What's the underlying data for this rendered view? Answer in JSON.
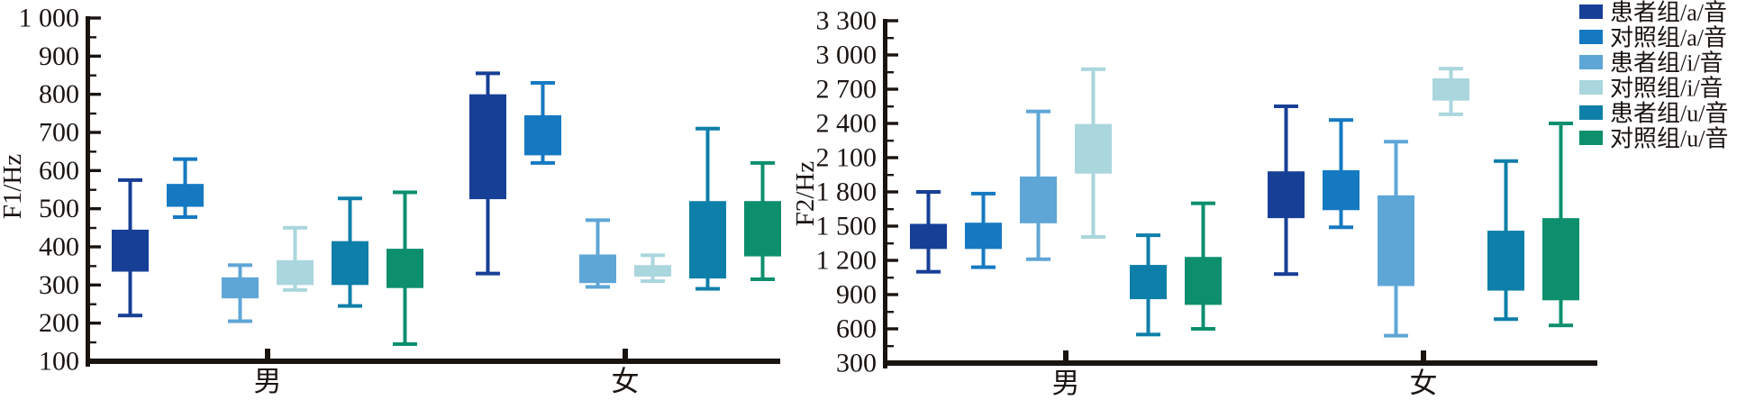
{
  "figure": {
    "background": "#ffffff"
  },
  "legend": {
    "items": [
      {
        "label": "患者组/a/音",
        "color": "#173f96"
      },
      {
        "label": "对照组/a/音",
        "color": "#1579c2"
      },
      {
        "label": "患者组/i/音",
        "color": "#5ea6d6"
      },
      {
        "label": "对照组/i/音",
        "color": "#aad6dd"
      },
      {
        "label": "患者组/u/音",
        "color": "#0e7fa8"
      },
      {
        "label": "对照组/u/音",
        "color": "#0d8f6e"
      }
    ]
  },
  "chart_data": [
    {
      "type": "boxplot",
      "ylabel": "F1/Hz",
      "ylim": [
        100,
        1000
      ],
      "ytick_major": 100,
      "ytick_minor": 50,
      "ytick_labels": [
        "1 000",
        "900",
        "800",
        "700",
        "600",
        "500",
        "400",
        "300",
        "200",
        "100"
      ],
      "categories": [
        "男",
        "女"
      ],
      "grid": false,
      "legend_position": "top-right",
      "series": [
        {
          "name": "患者组/a/音",
          "color": "#173f96",
          "boxes": [
            {
              "low": 220,
              "q1": 335,
              "q3": 445,
              "high": 575
            },
            {
              "low": 330,
              "q1": 525,
              "q3": 800,
              "high": 855
            }
          ]
        },
        {
          "name": "对照组/a/音",
          "color": "#1579c2",
          "boxes": [
            {
              "low": 478,
              "q1": 505,
              "q3": 565,
              "high": 630
            },
            {
              "low": 620,
              "q1": 640,
              "q3": 745,
              "high": 830
            }
          ]
        },
        {
          "name": "患者组/i/音",
          "color": "#5ea6d6",
          "boxes": [
            {
              "low": 205,
              "q1": 265,
              "q3": 320,
              "high": 352
            },
            {
              "low": 295,
              "q1": 305,
              "q3": 380,
              "high": 470
            }
          ]
        },
        {
          "name": "对照组/i/音",
          "color": "#aad6dd",
          "boxes": [
            {
              "low": 287,
              "q1": 300,
              "q3": 365,
              "high": 450
            },
            {
              "low": 310,
              "q1": 322,
              "q3": 352,
              "high": 378
            }
          ]
        },
        {
          "name": "患者组/u/音",
          "color": "#0e7fa8",
          "boxes": [
            {
              "low": 245,
              "q1": 300,
              "q3": 415,
              "high": 527
            },
            {
              "low": 290,
              "q1": 317,
              "q3": 520,
              "high": 710
            }
          ]
        },
        {
          "name": "对照组/u/音",
          "color": "#0d8f6e",
          "boxes": [
            {
              "low": 145,
              "q1": 292,
              "q3": 395,
              "high": 543
            },
            {
              "low": 315,
              "q1": 375,
              "q3": 520,
              "high": 620
            }
          ]
        }
      ]
    },
    {
      "type": "boxplot",
      "ylabel": "F2/Hz",
      "ylim": [
        300,
        3300
      ],
      "ytick_major": 300,
      "ytick_minor": 150,
      "ytick_labels": [
        "3 300",
        "3 000",
        "2 700",
        "2 400",
        "2 100",
        "1 800",
        "1 500",
        "1 200",
        "900",
        "600",
        "300"
      ],
      "categories": [
        "男",
        "女"
      ],
      "grid": false,
      "legend_position": "top-right",
      "series": [
        {
          "name": "患者组/a/音",
          "color": "#173f96",
          "boxes": [
            {
              "low": 1100,
              "q1": 1300,
              "q3": 1520,
              "high": 1800
            },
            {
              "low": 1080,
              "q1": 1570,
              "q3": 1980,
              "high": 2550
            }
          ]
        },
        {
          "name": "对照组/a/音",
          "color": "#1579c2",
          "boxes": [
            {
              "low": 1140,
              "q1": 1300,
              "q3": 1530,
              "high": 1785
            },
            {
              "low": 1490,
              "q1": 1640,
              "q3": 1990,
              "high": 2430
            }
          ]
        },
        {
          "name": "患者组/i/音",
          "color": "#5ea6d6",
          "boxes": [
            {
              "low": 1210,
              "q1": 1525,
              "q3": 1935,
              "high": 2505
            },
            {
              "low": 540,
              "q1": 975,
              "q3": 1770,
              "high": 2240
            }
          ]
        },
        {
          "name": "对照组/i/音",
          "color": "#aad6dd",
          "boxes": [
            {
              "low": 1405,
              "q1": 1960,
              "q3": 2395,
              "high": 2875
            },
            {
              "low": 2480,
              "q1": 2600,
              "q3": 2795,
              "high": 2880
            }
          ]
        },
        {
          "name": "患者组/u/音",
          "color": "#0e7fa8",
          "boxes": [
            {
              "low": 550,
              "q1": 860,
              "q3": 1160,
              "high": 1420
            },
            {
              "low": 685,
              "q1": 935,
              "q3": 1460,
              "high": 2070
            }
          ]
        },
        {
          "name": "对照组/u/音",
          "color": "#0d8f6e",
          "boxes": [
            {
              "low": 600,
              "q1": 810,
              "q3": 1230,
              "high": 1700
            },
            {
              "low": 630,
              "q1": 850,
              "q3": 1570,
              "high": 2400
            }
          ]
        }
      ]
    }
  ]
}
